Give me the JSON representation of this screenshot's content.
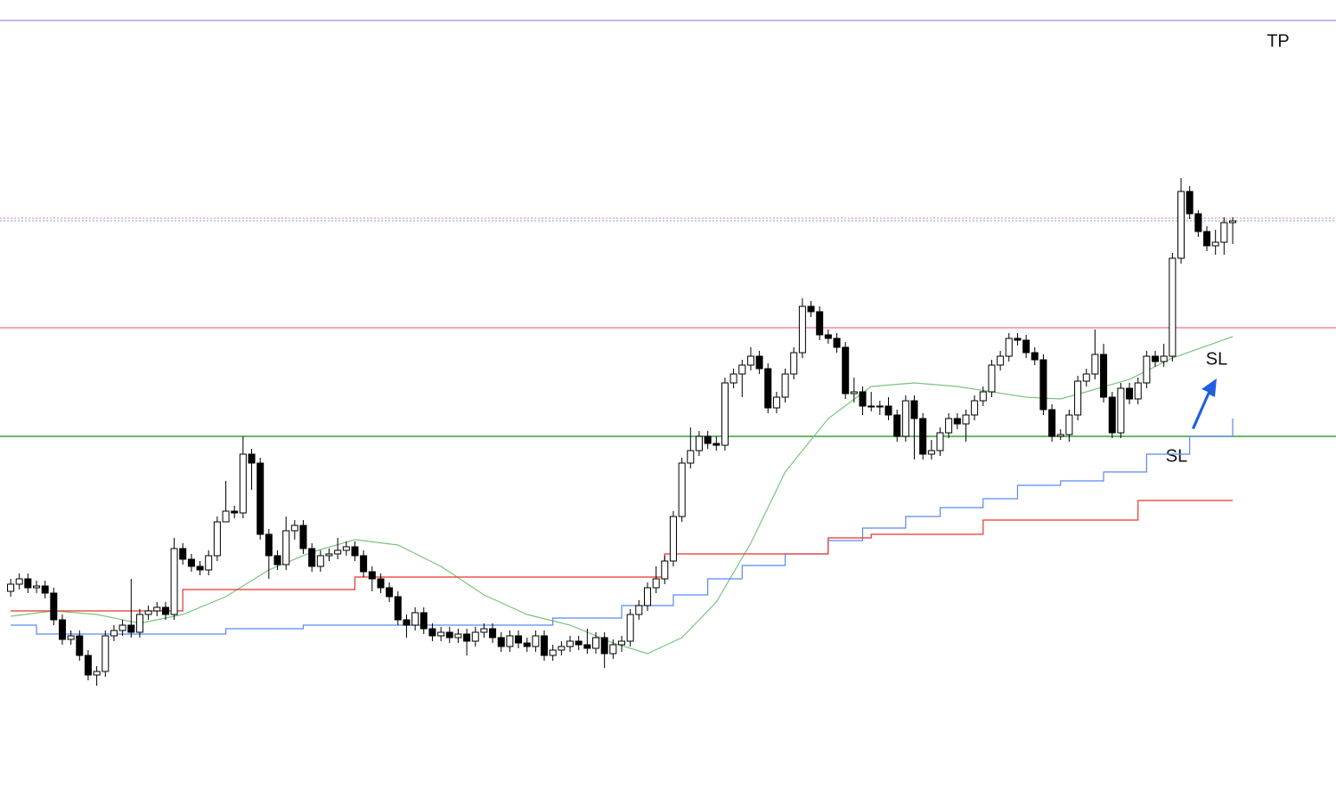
{
  "chart_data": {
    "type": "candlestick",
    "ylim": [
      0,
      886
    ],
    "up_color": "#ffffff",
    "down_color": "#000000",
    "open": [
      222,
      230,
      236,
      226,
      228,
      220,
      190,
      168,
      172,
      150,
      128,
      132,
      172,
      178,
      184,
      176,
      196,
      200,
      204,
      196,
      270,
      258,
      250,
      246,
      262,
      300,
      312,
      310,
      376,
      366,
      286,
      262,
      252,
      290,
      296,
      270,
      250,
      262,
      264,
      268,
      272,
      262,
      244,
      236,
      226,
      216,
      190,
      184,
      198,
      180,
      172,
      176,
      170,
      174,
      166,
      176,
      180,
      170,
      160,
      172,
      164,
      160,
      172,
      150,
      156,
      160,
      166,
      162,
      158,
      170,
      152,
      162,
      166,
      196,
      206,
      226,
      236,
      256,
      306,
      366,
      380,
      396,
      388,
      386,
      456,
      466,
      476,
      486,
      472,
      428,
      440,
      466,
      490,
      542,
      536,
      510,
      506,
      496,
      444,
      446,
      430,
      430,
      430,
      420,
      396,
      436,
      416,
      376,
      380,
      400,
      416,
      410,
      420,
      436,
      446,
      476,
      486,
      506,
      504,
      490,
      482,
      426,
      396,
      398,
      420,
      458,
      466,
      488,
      440,
      400,
      450,
      438,
      456,
      486,
      480,
      486,
      596,
      671,
      646,
      626,
      610,
      614,
      636
    ],
    "high": [
      236,
      242,
      242,
      234,
      234,
      226,
      196,
      178,
      178,
      156,
      138,
      178,
      184,
      190,
      236,
      202,
      206,
      210,
      210,
      282,
      276,
      264,
      256,
      268,
      306,
      346,
      318,
      396,
      382,
      372,
      292,
      268,
      306,
      302,
      302,
      276,
      268,
      270,
      282,
      278,
      278,
      268,
      250,
      242,
      232,
      222,
      196,
      204,
      204,
      186,
      182,
      182,
      180,
      180,
      182,
      186,
      186,
      176,
      178,
      178,
      170,
      178,
      178,
      162,
      166,
      172,
      172,
      180,
      176,
      176,
      168,
      172,
      202,
      212,
      232,
      250,
      262,
      312,
      372,
      406,
      402,
      402,
      396,
      462,
      472,
      482,
      496,
      492,
      478,
      446,
      472,
      496,
      551,
      548,
      542,
      516,
      512,
      502,
      462,
      452,
      446,
      436,
      440,
      426,
      442,
      442,
      422,
      392,
      406,
      422,
      422,
      426,
      442,
      452,
      482,
      492,
      512,
      512,
      510,
      496,
      488,
      432,
      404,
      426,
      464,
      472,
      516,
      500,
      446,
      456,
      456,
      462,
      492,
      492,
      500,
      602,
      686,
      677,
      650,
      632,
      628,
      642,
      642
    ],
    "low": [
      216,
      224,
      220,
      220,
      214,
      184,
      162,
      162,
      144,
      122,
      116,
      126,
      166,
      172,
      170,
      170,
      190,
      194,
      190,
      190,
      252,
      244,
      240,
      240,
      256,
      306,
      304,
      304,
      336,
      280,
      236,
      246,
      246,
      280,
      264,
      244,
      244,
      256,
      258,
      262,
      256,
      238,
      222,
      220,
      210,
      184,
      170,
      178,
      174,
      166,
      166,
      164,
      164,
      150,
      160,
      170,
      164,
      154,
      154,
      158,
      154,
      154,
      144,
      144,
      150,
      154,
      156,
      152,
      152,
      136,
      146,
      154,
      160,
      190,
      200,
      220,
      230,
      250,
      300,
      360,
      374,
      382,
      380,
      380,
      450,
      440,
      470,
      466,
      422,
      422,
      434,
      460,
      484,
      530,
      504,
      500,
      490,
      438,
      434,
      420,
      424,
      420,
      414,
      390,
      390,
      370,
      370,
      370,
      374,
      394,
      404,
      390,
      414,
      430,
      440,
      470,
      480,
      498,
      484,
      476,
      420,
      390,
      392,
      390,
      414,
      452,
      460,
      434,
      394,
      394,
      432,
      432,
      450,
      474,
      474,
      480,
      590,
      640,
      620,
      604,
      600,
      600,
      612
    ],
    "close": [
      230,
      236,
      226,
      228,
      220,
      190,
      168,
      172,
      150,
      128,
      132,
      172,
      178,
      184,
      176,
      196,
      200,
      204,
      196,
      270,
      258,
      250,
      246,
      262,
      300,
      312,
      310,
      376,
      366,
      286,
      262,
      252,
      290,
      296,
      270,
      250,
      262,
      264,
      268,
      272,
      262,
      244,
      236,
      226,
      216,
      190,
      184,
      198,
      180,
      172,
      176,
      170,
      174,
      166,
      176,
      180,
      170,
      160,
      172,
      164,
      160,
      172,
      150,
      156,
      160,
      166,
      162,
      158,
      170,
      152,
      162,
      166,
      196,
      206,
      226,
      236,
      256,
      306,
      366,
      380,
      396,
      388,
      386,
      456,
      466,
      476,
      486,
      472,
      428,
      440,
      466,
      490,
      542,
      536,
      510,
      506,
      496,
      444,
      446,
      430,
      430,
      430,
      420,
      396,
      436,
      416,
      376,
      380,
      400,
      416,
      410,
      420,
      436,
      446,
      476,
      486,
      506,
      504,
      490,
      482,
      426,
      396,
      398,
      420,
      458,
      466,
      488,
      440,
      400,
      450,
      438,
      456,
      486,
      480,
      486,
      596,
      671,
      646,
      626,
      610,
      614,
      636,
      638
    ],
    "lines": [
      {
        "color": "#7cc47c",
        "step": false,
        "x": [
          0,
          5,
          10,
          15,
          20,
          25,
          30,
          35,
          40,
          45,
          50,
          55,
          60,
          65,
          70,
          74,
          78,
          82,
          86,
          90,
          95,
          100,
          105,
          110,
          118,
          122,
          125,
          130,
          135,
          142
        ],
        "values": [
          194,
          200,
          196,
          186,
          196,
          216,
          246,
          266,
          280,
          274,
          250,
          218,
          196,
          184,
          164,
          152,
          170,
          210,
          276,
          356,
          416,
          452,
          456,
          452,
          440,
          438,
          446,
          460,
          484,
          508
        ]
      },
      {
        "color": "#5b8af0",
        "step": true,
        "x": [
          0,
          3,
          25,
          34,
          57,
          63,
          71,
          77,
          81,
          85,
          90,
          95,
          99,
          104,
          108,
          113,
          117,
          122,
          127,
          132,
          137,
          142
        ],
        "values": [
          184,
          174,
          180,
          184,
          184,
          192,
          206,
          218,
          236,
          251,
          264,
          279,
          293,
          306,
          316,
          326,
          341,
          346,
          356,
          376,
          396,
          416
        ]
      },
      {
        "color": "#e8352e",
        "step": true,
        "x": [
          0,
          4,
          20,
          40,
          58,
          76,
          95,
          100,
          113,
          131,
          142
        ],
        "values": [
          200,
          200,
          224,
          238,
          238,
          264,
          282,
          286,
          302,
          324,
          324
        ]
      }
    ],
    "levels": [
      {
        "value": 863,
        "color": "#b79be8",
        "dash": false
      },
      {
        "value": 641,
        "color": "#e88a8a",
        "dash": true
      },
      {
        "value": 638,
        "color": "#8a9ae8",
        "dash": true
      },
      {
        "value": 518,
        "color": "#f08a9a",
        "dash": false
      },
      {
        "value": 396,
        "color": "#3aa03a",
        "dash": false
      }
    ],
    "annotations": [
      "TP",
      "SL",
      "SL"
    ]
  }
}
